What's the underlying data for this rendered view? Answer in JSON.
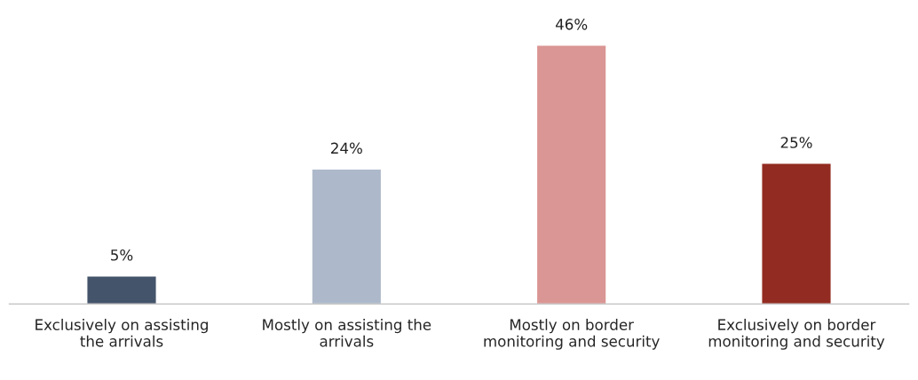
{
  "chart_data": {
    "type": "bar",
    "categories": [
      "Exclusively on assisting the arrivals",
      "Mostly on assisting the arrivals",
      "Mostly on border monitoring and security",
      "Exclusively on border monitoring and security"
    ],
    "values": [
      5,
      24,
      46,
      25
    ],
    "value_labels": [
      "5%",
      "24%",
      "46%",
      "25%"
    ],
    "colors": [
      "#44546a",
      "#adb9ca",
      "#da9694",
      "#922b21"
    ],
    "grid": false,
    "legend": false,
    "tick_labels": "x"
  }
}
